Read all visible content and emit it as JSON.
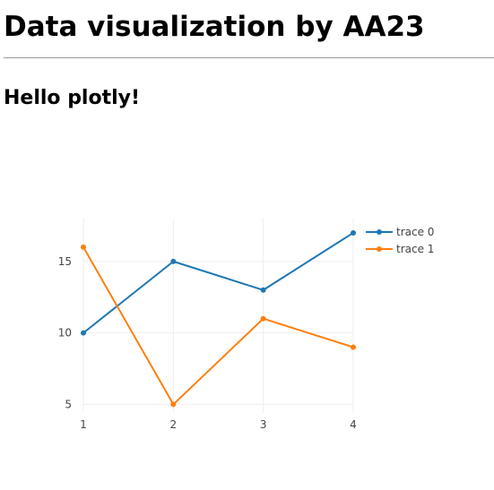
{
  "page": {
    "title": "Data visualization by AA23",
    "subtitle": "Hello plotly!"
  },
  "chart_data": {
    "type": "line",
    "x": [
      1,
      2,
      3,
      4
    ],
    "series": [
      {
        "name": "trace 0",
        "values": [
          10,
          15,
          13,
          17
        ],
        "color": "#1f77b4"
      },
      {
        "name": "trace 1",
        "values": [
          16,
          5,
          11,
          9
        ],
        "color": "#ff7f0e"
      }
    ],
    "xlim": [
      0.99,
      4.01
    ],
    "ylim": [
      4.4,
      18
    ],
    "x_ticks": [
      1,
      2,
      3,
      4
    ],
    "y_ticks": [
      5,
      10,
      15
    ],
    "mode": "lines+markers",
    "grid": true,
    "legend_position": "top-right",
    "grid_color": "#eeeeee"
  }
}
